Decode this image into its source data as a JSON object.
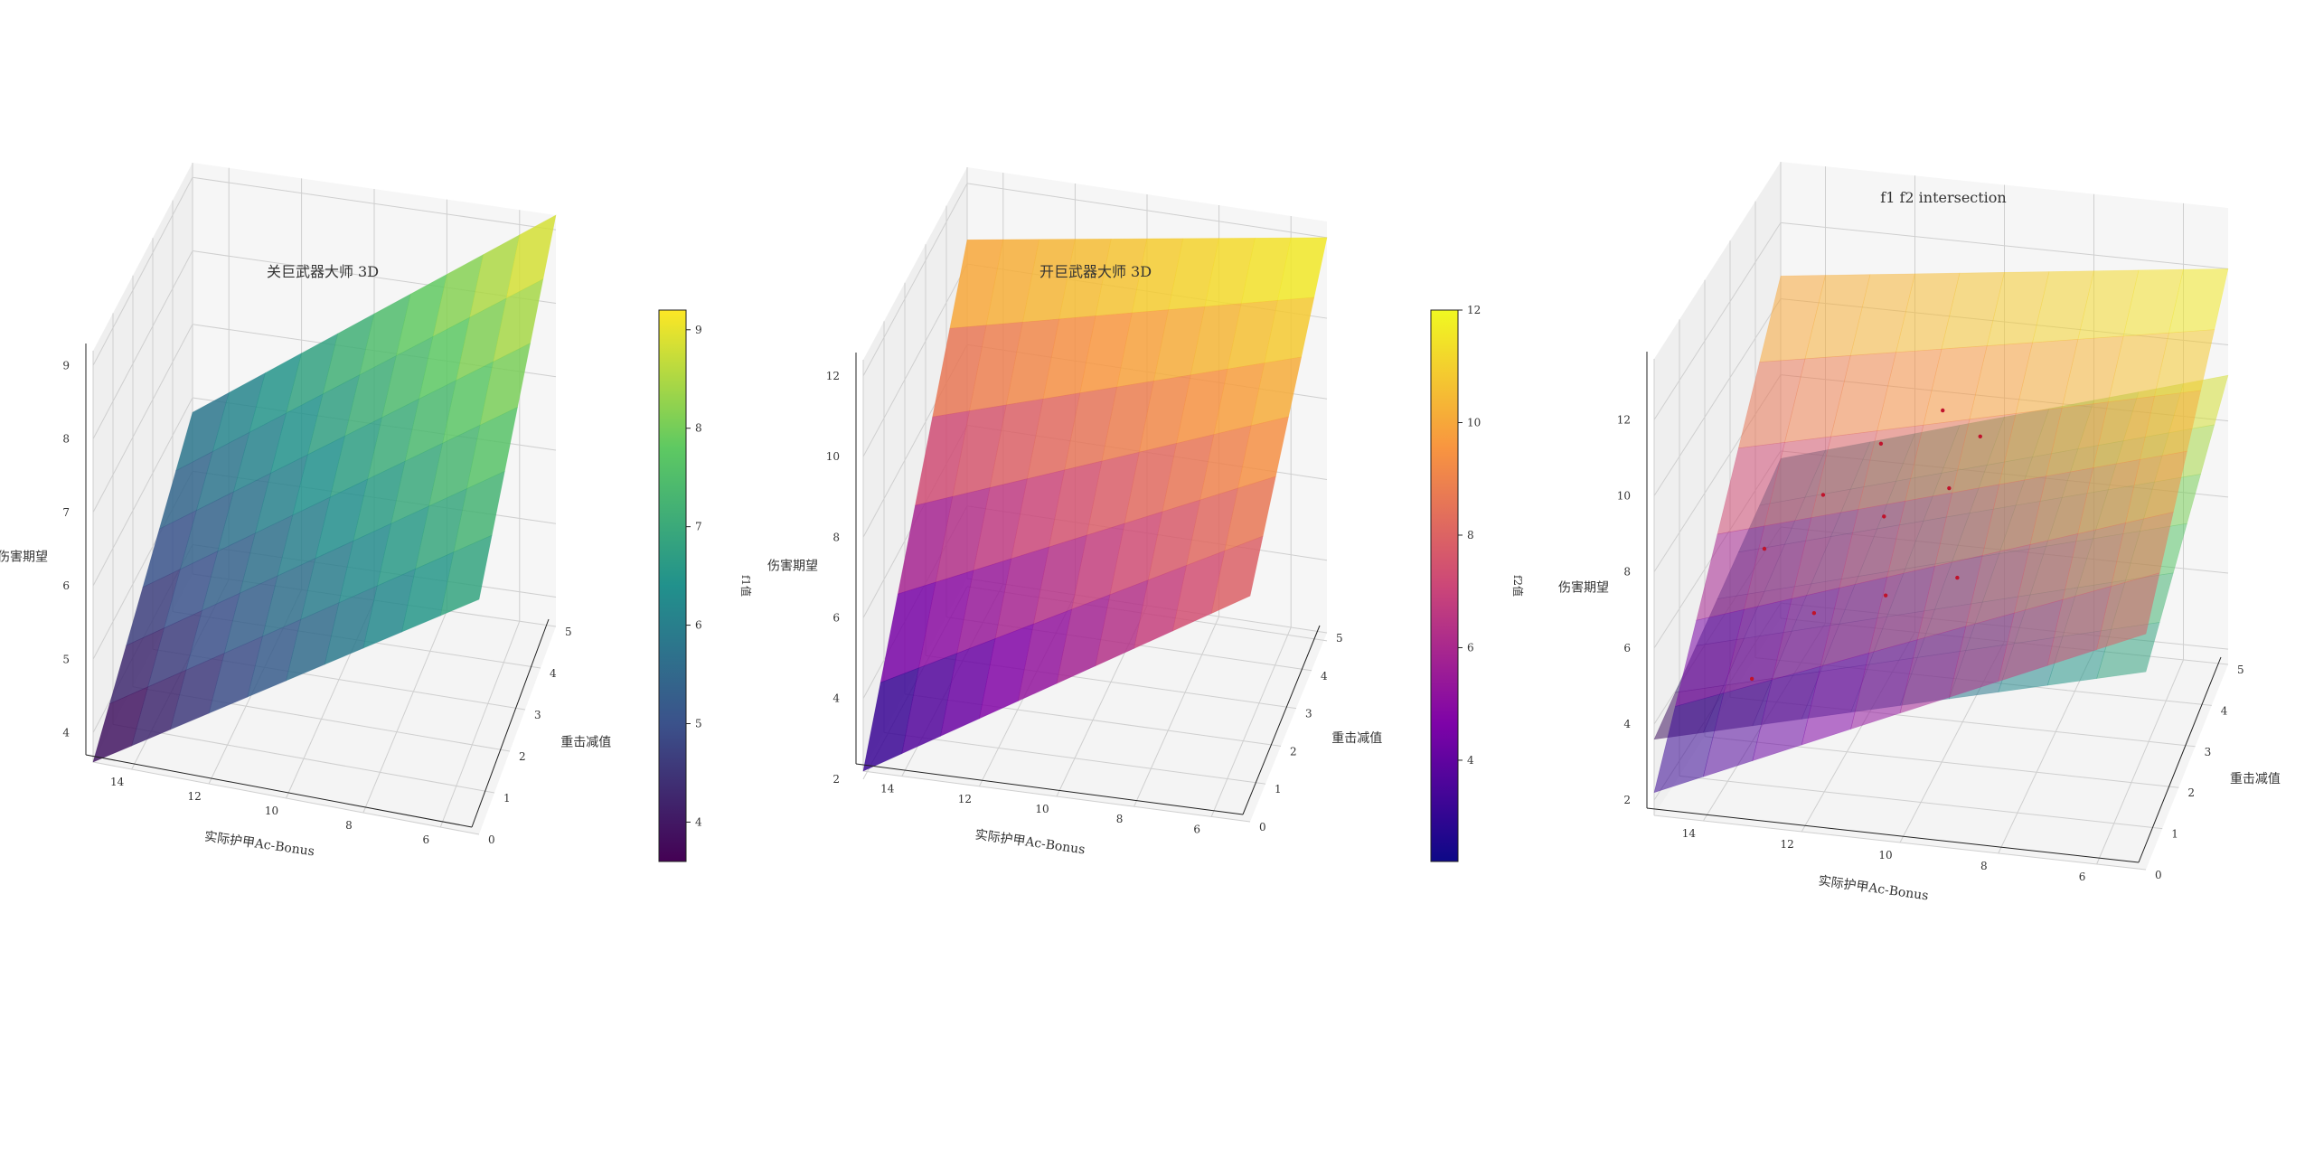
{
  "chart_data": [
    {
      "type": "surface3d",
      "title": "关巨武器大师 3D",
      "xlabel": "实际护甲Ac-Bonus",
      "ylabel": "重击减值",
      "zlabel": "伤害期望",
      "x_range": [
        5,
        15
      ],
      "y_range": [
        0,
        5
      ],
      "xticks": [
        6,
        8,
        10,
        12,
        14
      ],
      "yticks": [
        0,
        1,
        2,
        3,
        4,
        5
      ],
      "zticks": [
        4,
        5,
        6,
        7,
        8,
        9
      ],
      "zlim": [
        3.6,
        9.2
      ],
      "colormap": "viridis",
      "surface": {
        "name": "f1",
        "z_at_x15_y0": 3.6,
        "z_at_x5_y0": 6.8,
        "z_at_x15_y5": 5.8,
        "z_at_x5_y5": 9.2
      },
      "colorbar": {
        "label": "f1值",
        "ticks": [
          4,
          5,
          6,
          7,
          8,
          9
        ],
        "range": [
          3.6,
          9.2
        ]
      }
    },
    {
      "type": "surface3d",
      "title": "开巨武器大师 3D",
      "xlabel": "实际护甲Ac-Bonus",
      "ylabel": "重击减值",
      "zlabel": "伤害期望",
      "x_range": [
        5,
        15
      ],
      "y_range": [
        0,
        5
      ],
      "xticks": [
        6,
        8,
        10,
        12,
        14
      ],
      "yticks": [
        0,
        1,
        2,
        3,
        4,
        5
      ],
      "zticks": [
        2,
        4,
        6,
        8,
        10,
        12
      ],
      "zlim": [
        2.2,
        12.4
      ],
      "colormap": "plasma",
      "surface": {
        "name": "f2",
        "z_at_x15_y0": 2.2,
        "z_at_x5_y0": 7.8,
        "z_at_x15_y5": 10.6,
        "z_at_x5_y5": 12.0
      },
      "colorbar": {
        "label": "f2值",
        "ticks": [
          4,
          6,
          8,
          10,
          12
        ],
        "range": [
          2.2,
          12.0
        ]
      }
    },
    {
      "type": "surface3d",
      "title": "f1 f2 intersection",
      "xlabel": "实际护甲Ac-Bonus",
      "ylabel": "重击减值",
      "zlabel": "伤害期望",
      "x_range": [
        5,
        15
      ],
      "y_range": [
        0,
        5
      ],
      "xticks": [
        6,
        8,
        10,
        12,
        14
      ],
      "yticks": [
        0,
        1,
        2,
        3,
        4,
        5
      ],
      "zticks": [
        2,
        4,
        6,
        8,
        10,
        12
      ],
      "zlim": [
        1.6,
        13.6
      ],
      "surfaces": [
        "f1",
        "f2"
      ],
      "intersection_points": [
        {
          "x": 14,
          "y": 2.5
        },
        {
          "x": 13,
          "y": 3
        },
        {
          "x": 12,
          "y": 3.5
        },
        {
          "x": 11.5,
          "y": 2.6
        },
        {
          "x": 11,
          "y": 1.6
        },
        {
          "x": 12.5,
          "y": 1.6
        },
        {
          "x": 10.2,
          "y": 2.8
        },
        {
          "x": 9.5,
          "y": 1.6
        },
        {
          "x": 13.5,
          "y": 1
        },
        {
          "x": 10.8,
          "y": 3.8
        },
        {
          "x": 9.8,
          "y": 3.4
        }
      ]
    }
  ]
}
